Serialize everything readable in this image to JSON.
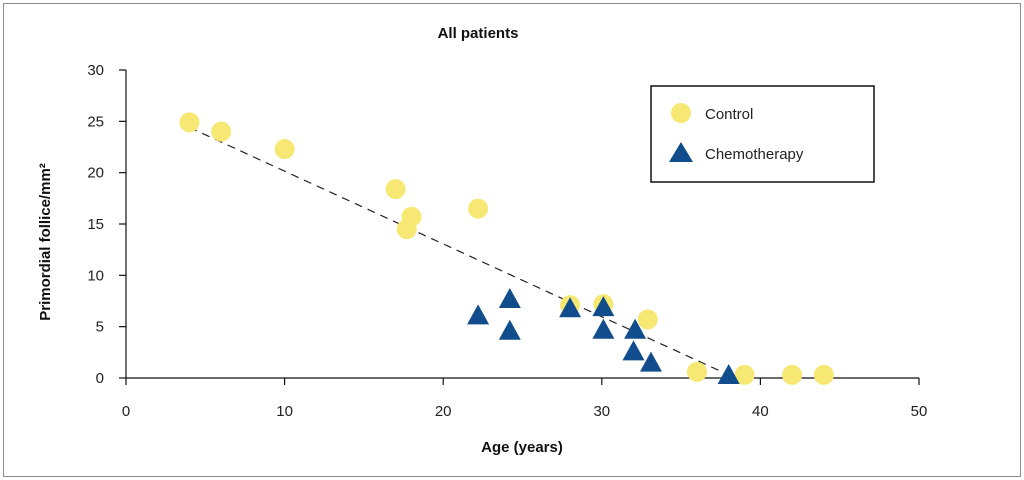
{
  "chart_data": {
    "type": "scatter",
    "title": "All patients",
    "xlabel": "Age (years)",
    "ylabel": "Primordial follice/mm²",
    "xlim": [
      0,
      50
    ],
    "ylim": [
      0,
      30
    ],
    "xticks": [
      "0",
      "10",
      "20",
      "30",
      "40",
      "50"
    ],
    "yticks": [
      "0",
      "5",
      "10",
      "15",
      "20",
      "25",
      "30"
    ],
    "grid": false,
    "legend_position": "top-right",
    "colors": {
      "control": "#f6e873",
      "chemotherapy": "#114d8c",
      "trend": "#222222"
    },
    "series": [
      {
        "name": "Control",
        "marker": "circle",
        "points": [
          [
            4,
            24.9
          ],
          [
            6,
            24.0
          ],
          [
            10,
            22.3
          ],
          [
            17,
            18.4
          ],
          [
            18,
            15.7
          ],
          [
            17.7,
            14.5
          ],
          [
            22.2,
            16.5
          ],
          [
            28,
            7.1
          ],
          [
            30.1,
            7.2
          ],
          [
            32.9,
            5.7
          ],
          [
            36,
            0.6
          ],
          [
            39,
            0.3
          ],
          [
            42,
            0.3
          ],
          [
            44,
            0.3
          ]
        ]
      },
      {
        "name": "Chemotherapy",
        "marker": "triangle",
        "points": [
          [
            22.2,
            6.0
          ],
          [
            24.2,
            7.6
          ],
          [
            24.2,
            4.5
          ],
          [
            28,
            6.7
          ],
          [
            30.1,
            6.8
          ],
          [
            30.1,
            4.6
          ],
          [
            32.1,
            4.6
          ],
          [
            32,
            2.5
          ],
          [
            33.1,
            1.4
          ],
          [
            38,
            0.2
          ]
        ]
      }
    ],
    "trendline": {
      "style": "dashed",
      "from": [
        4,
        24.4
      ],
      "to": [
        38,
        0.3
      ]
    }
  }
}
